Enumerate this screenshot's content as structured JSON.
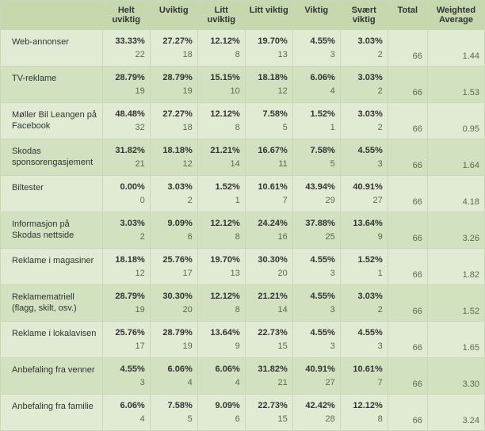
{
  "table": {
    "columns": [
      "",
      "Helt uviktig",
      "Uviktig",
      "Litt uviktig",
      "Litt viktig",
      "Viktig",
      "Svært viktig",
      "Total",
      "Weighted Average"
    ],
    "rows": [
      {
        "label": "Web-annonser",
        "cells": [
          {
            "pct": "33.33%",
            "cnt": "22"
          },
          {
            "pct": "27.27%",
            "cnt": "18"
          },
          {
            "pct": "12.12%",
            "cnt": "8"
          },
          {
            "pct": "19.70%",
            "cnt": "13"
          },
          {
            "pct": "4.55%",
            "cnt": "3"
          },
          {
            "pct": "3.03%",
            "cnt": "2"
          }
        ],
        "total": "66",
        "wa": "1.44"
      },
      {
        "label": "TV-reklame",
        "cells": [
          {
            "pct": "28.79%",
            "cnt": "19"
          },
          {
            "pct": "28.79%",
            "cnt": "19"
          },
          {
            "pct": "15.15%",
            "cnt": "10"
          },
          {
            "pct": "18.18%",
            "cnt": "12"
          },
          {
            "pct": "6.06%",
            "cnt": "4"
          },
          {
            "pct": "3.03%",
            "cnt": "2"
          }
        ],
        "total": "66",
        "wa": "1.53"
      },
      {
        "label": "Møller Bil Leangen på Facebook",
        "cells": [
          {
            "pct": "48.48%",
            "cnt": "32"
          },
          {
            "pct": "27.27%",
            "cnt": "18"
          },
          {
            "pct": "12.12%",
            "cnt": "8"
          },
          {
            "pct": "7.58%",
            "cnt": "5"
          },
          {
            "pct": "1.52%",
            "cnt": "1"
          },
          {
            "pct": "3.03%",
            "cnt": "2"
          }
        ],
        "total": "66",
        "wa": "0.95"
      },
      {
        "label": "Skodas sponsorengasjement",
        "cells": [
          {
            "pct": "31.82%",
            "cnt": "21"
          },
          {
            "pct": "18.18%",
            "cnt": "12"
          },
          {
            "pct": "21.21%",
            "cnt": "14"
          },
          {
            "pct": "16.67%",
            "cnt": "11"
          },
          {
            "pct": "7.58%",
            "cnt": "5"
          },
          {
            "pct": "4.55%",
            "cnt": "3"
          }
        ],
        "total": "66",
        "wa": "1.64"
      },
      {
        "label": "Biltester",
        "cells": [
          {
            "pct": "0.00%",
            "cnt": "0"
          },
          {
            "pct": "3.03%",
            "cnt": "2"
          },
          {
            "pct": "1.52%",
            "cnt": "1"
          },
          {
            "pct": "10.61%",
            "cnt": "7"
          },
          {
            "pct": "43.94%",
            "cnt": "29"
          },
          {
            "pct": "40.91%",
            "cnt": "27"
          }
        ],
        "total": "66",
        "wa": "4.18"
      },
      {
        "label": "Informasjon på Skodas nettside",
        "cells": [
          {
            "pct": "3.03%",
            "cnt": "2"
          },
          {
            "pct": "9.09%",
            "cnt": "6"
          },
          {
            "pct": "12.12%",
            "cnt": "8"
          },
          {
            "pct": "24.24%",
            "cnt": "16"
          },
          {
            "pct": "37.88%",
            "cnt": "25"
          },
          {
            "pct": "13.64%",
            "cnt": "9"
          }
        ],
        "total": "66",
        "wa": "3.26"
      },
      {
        "label": "Reklame i magasiner",
        "cells": [
          {
            "pct": "18.18%",
            "cnt": "12"
          },
          {
            "pct": "25.76%",
            "cnt": "17"
          },
          {
            "pct": "19.70%",
            "cnt": "13"
          },
          {
            "pct": "30.30%",
            "cnt": "20"
          },
          {
            "pct": "4.55%",
            "cnt": "3"
          },
          {
            "pct": "1.52%",
            "cnt": "1"
          }
        ],
        "total": "66",
        "wa": "1.82"
      },
      {
        "label": "Reklamematriell (flagg, skilt, osv.)",
        "cells": [
          {
            "pct": "28.79%",
            "cnt": "19"
          },
          {
            "pct": "30.30%",
            "cnt": "20"
          },
          {
            "pct": "12.12%",
            "cnt": "8"
          },
          {
            "pct": "21.21%",
            "cnt": "14"
          },
          {
            "pct": "4.55%",
            "cnt": "3"
          },
          {
            "pct": "3.03%",
            "cnt": "2"
          }
        ],
        "total": "66",
        "wa": "1.52"
      },
      {
        "label": "Reklame i lokalavisen",
        "cells": [
          {
            "pct": "25.76%",
            "cnt": "17"
          },
          {
            "pct": "28.79%",
            "cnt": "19"
          },
          {
            "pct": "13.64%",
            "cnt": "9"
          },
          {
            "pct": "22.73%",
            "cnt": "15"
          },
          {
            "pct": "4.55%",
            "cnt": "3"
          },
          {
            "pct": "4.55%",
            "cnt": "3"
          }
        ],
        "total": "66",
        "wa": "1.65"
      },
      {
        "label": "Anbefaling fra venner",
        "cells": [
          {
            "pct": "4.55%",
            "cnt": "3"
          },
          {
            "pct": "6.06%",
            "cnt": "4"
          },
          {
            "pct": "6.06%",
            "cnt": "4"
          },
          {
            "pct": "31.82%",
            "cnt": "21"
          },
          {
            "pct": "40.91%",
            "cnt": "27"
          },
          {
            "pct": "10.61%",
            "cnt": "7"
          }
        ],
        "total": "66",
        "wa": "3.30"
      },
      {
        "label": "Anbefaling fra familie",
        "cells": [
          {
            "pct": "6.06%",
            "cnt": "4"
          },
          {
            "pct": "7.58%",
            "cnt": "5"
          },
          {
            "pct": "9.09%",
            "cnt": "6"
          },
          {
            "pct": "22.73%",
            "cnt": "15"
          },
          {
            "pct": "42.42%",
            "cnt": "28"
          },
          {
            "pct": "12.12%",
            "cnt": "8"
          }
        ],
        "total": "66",
        "wa": "3.24"
      }
    ],
    "styling": {
      "header_bg": "#c5d8ae",
      "row_odd_bg": "#e1ebd3",
      "row_even_bg": "#d2e1bf",
      "border_color": "#c9d9b8",
      "font_family": "Arial",
      "font_size_pt": 8,
      "pct_font_weight": "bold",
      "cnt_color": "#5a6b4a"
    }
  }
}
